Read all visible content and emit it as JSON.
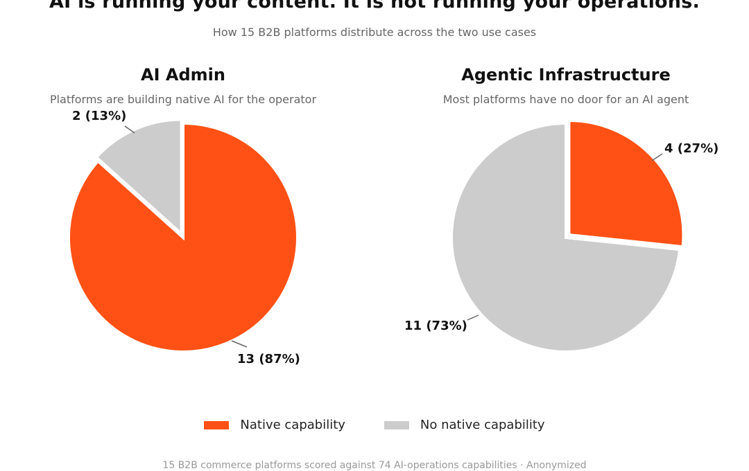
{
  "title": "AI is running your content. It is not running your operations.",
  "subtitle": "How 15 B2B platforms distribute across the two use cases",
  "colors": {
    "native": "#FF5115",
    "none": "#CCCCCC"
  },
  "legend": [
    "Native capability",
    "No native capability"
  ],
  "footer": "15 B2B commerce platforms scored against 74 AI-operations capabilities  ·  Anonymized",
  "chart_data": [
    {
      "type": "pie",
      "title": "AI Admin",
      "subtitle": "Platforms are building native AI for the operator",
      "slices": [
        {
          "label": "Native capability",
          "value": 13,
          "percent": 87,
          "text": "13  (87%)"
        },
        {
          "label": "No native capability",
          "value": 2,
          "percent": 13,
          "text": "2  (13%)"
        }
      ]
    },
    {
      "type": "pie",
      "title": "Agentic Infrastructure",
      "subtitle": "Most platforms have no door for an AI agent",
      "slices": [
        {
          "label": "Native capability",
          "value": 4,
          "percent": 27,
          "text": "4  (27%)"
        },
        {
          "label": "No native capability",
          "value": 11,
          "percent": 73,
          "text": "11  (73%)"
        }
      ]
    }
  ]
}
